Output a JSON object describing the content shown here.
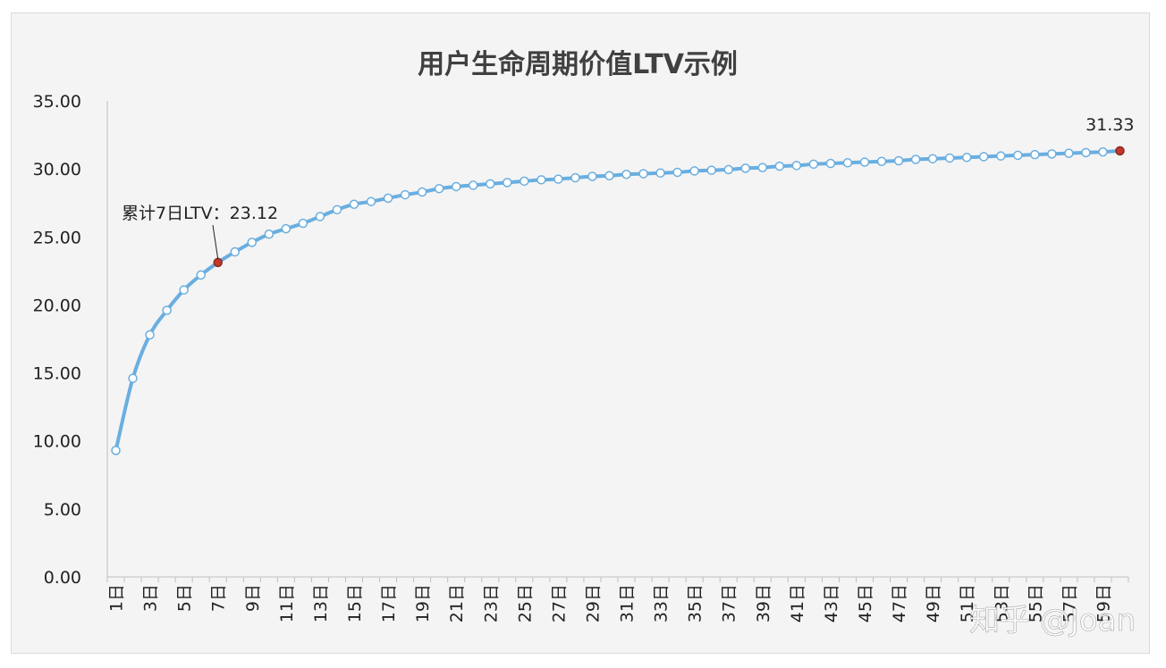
{
  "chart_data": {
    "type": "line",
    "title": "用户生命周期价值LTV示例",
    "xlabel": "",
    "ylabel": "",
    "ylim": [
      0,
      35
    ],
    "y_ticks": [
      "0.00",
      "5.00",
      "10.00",
      "15.00",
      "20.00",
      "25.00",
      "30.00",
      "35.00"
    ],
    "x_tick_labels": [
      "1日",
      "3日",
      "5日",
      "7日",
      "9日",
      "11日",
      "13日",
      "15日",
      "17日",
      "19日",
      "21日",
      "23日",
      "25日",
      "27日",
      "29日",
      "31日",
      "33日",
      "35日",
      "37日",
      "39日",
      "41日",
      "43日",
      "45日",
      "47日",
      "49日",
      "51日",
      "53日",
      "55日",
      "57日",
      "59日"
    ],
    "series": [
      {
        "line_color": "#6aaee0",
        "marker_fill": "#ffffff",
        "x": [
          1,
          2,
          3,
          4,
          5,
          6,
          7,
          8,
          9,
          10,
          11,
          12,
          13,
          14,
          15,
          16,
          17,
          18,
          19,
          20,
          21,
          22,
          23,
          24,
          25,
          26,
          27,
          28,
          29,
          30,
          31,
          32,
          33,
          34,
          35,
          36,
          37,
          38,
          39,
          40,
          41,
          42,
          43,
          44,
          45,
          46,
          47,
          48,
          49,
          50,
          51,
          52,
          53,
          54,
          55,
          56,
          57,
          58,
          59,
          60
        ],
        "values": [
          9.3,
          14.6,
          17.8,
          19.6,
          21.1,
          22.2,
          23.12,
          23.9,
          24.6,
          25.2,
          25.6,
          26.0,
          26.5,
          27.0,
          27.4,
          27.6,
          27.85,
          28.1,
          28.3,
          28.55,
          28.7,
          28.8,
          28.9,
          29.0,
          29.1,
          29.2,
          29.25,
          29.35,
          29.45,
          29.5,
          29.6,
          29.65,
          29.7,
          29.75,
          29.85,
          29.9,
          29.95,
          30.05,
          30.1,
          30.2,
          30.25,
          30.35,
          30.4,
          30.45,
          30.5,
          30.55,
          30.6,
          30.7,
          30.75,
          30.8,
          30.85,
          30.9,
          30.95,
          31.0,
          31.05,
          31.1,
          31.15,
          31.2,
          31.25,
          31.33
        ]
      }
    ],
    "highlights": [
      {
        "x": 7,
        "value": 23.12,
        "color": "#c0392b",
        "label": "累计7日LTV：23.12"
      },
      {
        "x": 60,
        "value": 31.33,
        "color": "#c0392b",
        "label": "31.33"
      }
    ],
    "grid": false,
    "legend": "none"
  },
  "watermark": "知乎 @Joan"
}
